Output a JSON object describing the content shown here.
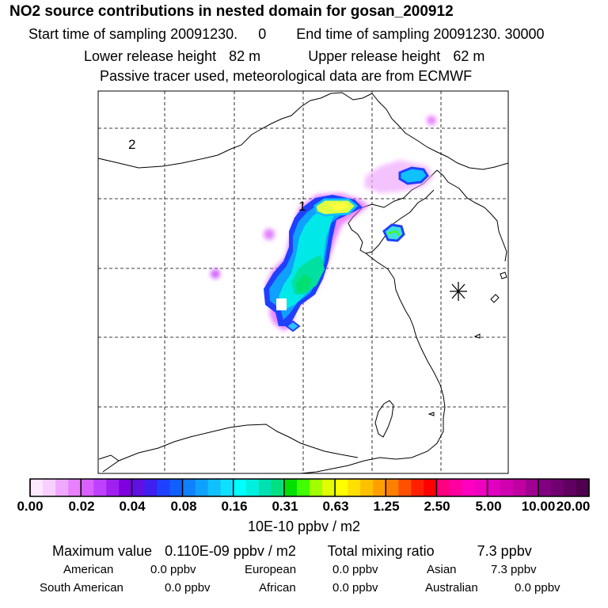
{
  "header": {
    "title": "NO2 source contributions in nested domain for gosan_200912",
    "start_label": "Start time of sampling",
    "start_value": "20091230.",
    "start_hour": "0",
    "end_label": "End time of sampling",
    "end_value": "20091230. 30000",
    "lower_label": "Lower release height",
    "lower_value": "82 m",
    "upper_label": "Upper release height",
    "upper_value": "62 m",
    "note": "Passive tracer used, meteorological data are from ECMWF"
  },
  "map": {
    "labels": [
      "1",
      "2"
    ],
    "marker": "asterisk-receptor-icon"
  },
  "colorbar": {
    "ticks": [
      "0.00",
      "0.02",
      "0.04",
      "0.08",
      "0.16",
      "0.31",
      "0.63",
      "1.25",
      "2.50",
      "5.00",
      "10.00",
      "20.00"
    ],
    "unit": "10E-10 ppbv / m2",
    "colors": [
      "#fce8ff",
      "#f8d0ff",
      "#f0a8ff",
      "#e880ff",
      "#d860ff",
      "#c040ff",
      "#a020f0",
      "#8000e0",
      "#6010e0",
      "#4020f0",
      "#2040ff",
      "#1060ff",
      "#1080ff",
      "#10a0ff",
      "#10c0ff",
      "#10e0ff",
      "#00ffff",
      "#00f0e0",
      "#00e0b0",
      "#00e080",
      "#00e000",
      "#40ff00",
      "#a0ff00",
      "#e0ff00",
      "#ffff00",
      "#ffe000",
      "#ffc000",
      "#ffa000",
      "#ff8000",
      "#ff5000",
      "#ff2000",
      "#ff0000",
      "#ff0080",
      "#ff00a0",
      "#ff00c0",
      "#f000c0",
      "#e000c0",
      "#d000b0",
      "#c000a0",
      "#a00090",
      "#800080",
      "#700070",
      "#600060",
      "#500050"
    ]
  },
  "footer": {
    "max_label": "Maximum value",
    "max_value": "0.110E-09 ppbv / m2",
    "total_label": "Total mixing ratio",
    "total_value": "7.3 ppbv",
    "regions": [
      {
        "name": "American",
        "value": "0.0 ppbv"
      },
      {
        "name": "European",
        "value": "0.0 ppbv"
      },
      {
        "name": "Asian",
        "value": "7.3 ppbv"
      },
      {
        "name": "South American",
        "value": "0.0 ppbv"
      },
      {
        "name": "African",
        "value": "0.0 ppbv"
      },
      {
        "name": "Australian",
        "value": "0.0 ppbv"
      }
    ]
  }
}
